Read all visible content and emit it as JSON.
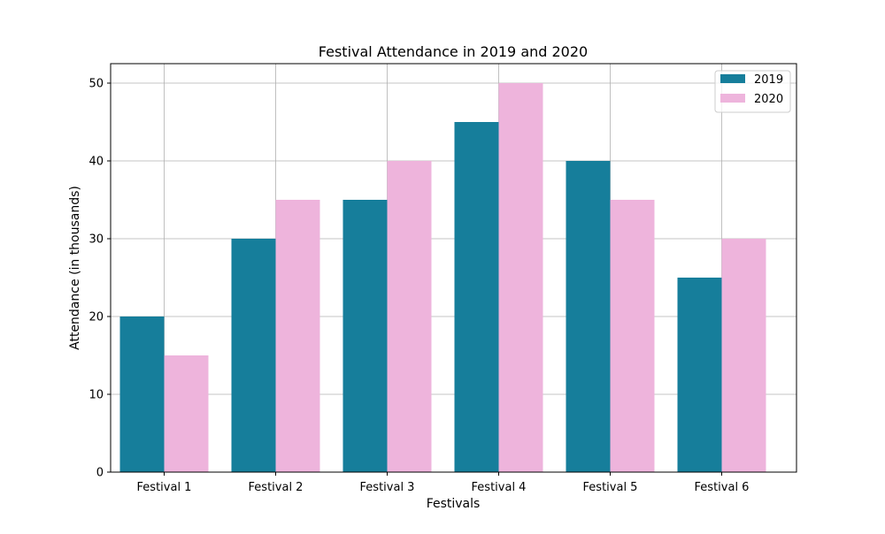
{
  "chart_data": {
    "type": "bar",
    "title": "Festival Attendance in 2019 and 2020",
    "xlabel": "Festivals",
    "ylabel": "Attendance (in thousands)",
    "categories": [
      "Festival 1",
      "Festival 2",
      "Festival 3",
      "Festival 4",
      "Festival 5",
      "Festival 6"
    ],
    "series": [
      {
        "name": "2019",
        "values": [
          20,
          30,
          35,
          45,
          40,
          25
        ],
        "color": "#167e9b"
      },
      {
        "name": "2020",
        "values": [
          15,
          35,
          40,
          50,
          35,
          30
        ],
        "color": "#eeb4dc"
      }
    ],
    "ylim": [
      0,
      52.5
    ],
    "yticks": [
      0,
      10,
      20,
      30,
      40,
      50
    ],
    "grid": true,
    "legend_position": "top-right"
  }
}
